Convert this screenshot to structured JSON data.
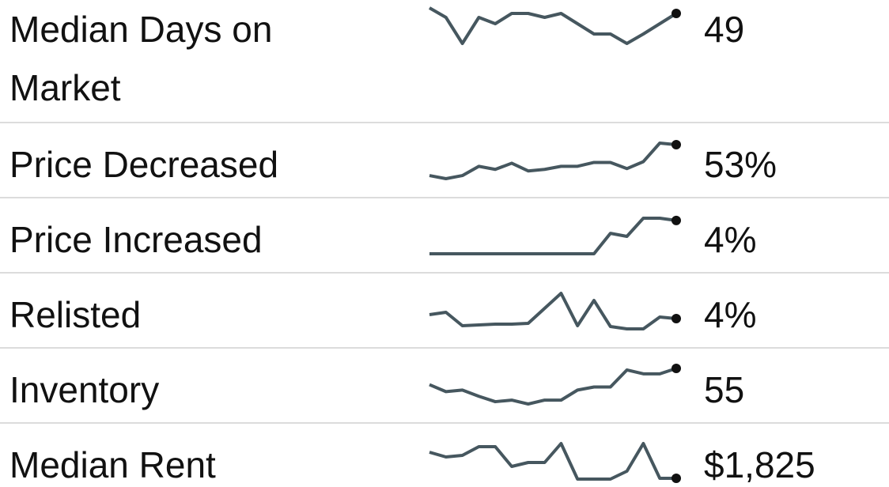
{
  "rows": [
    {
      "label": "Median Days on Market",
      "value": "49",
      "trend": [
        60,
        48,
        15,
        48,
        40,
        53,
        53,
        48,
        53,
        40,
        27,
        27,
        15,
        27,
        40,
        53
      ]
    },
    {
      "label": "Price Decreased",
      "value": "53%",
      "trend": [
        17,
        13,
        17,
        29,
        25,
        33,
        23,
        25,
        29,
        29,
        34,
        34,
        26,
        35,
        59,
        57
      ]
    },
    {
      "label": "Price Increased",
      "value": "4%",
      "trend": [
        7,
        7,
        7,
        7,
        7,
        7,
        7,
        7,
        7,
        7,
        7,
        34,
        30,
        54,
        54,
        51
      ]
    },
    {
      "label": "Relisted",
      "value": "4%",
      "trend": [
        22,
        25,
        8,
        9,
        10,
        10,
        11,
        30,
        49,
        8,
        40,
        7,
        4,
        4,
        19,
        17
      ]
    },
    {
      "label": "Inventory",
      "value": "55",
      "trend": [
        33,
        24,
        26,
        18,
        11,
        13,
        8,
        13,
        13,
        26,
        30,
        30,
        52,
        47,
        47,
        54
      ]
    },
    {
      "label": "Median Rent",
      "value": "$1,825",
      "trend": [
        38,
        32,
        34,
        45,
        45,
        20,
        25,
        25,
        49,
        4,
        4,
        4,
        14,
        49,
        5,
        5
      ]
    }
  ]
}
